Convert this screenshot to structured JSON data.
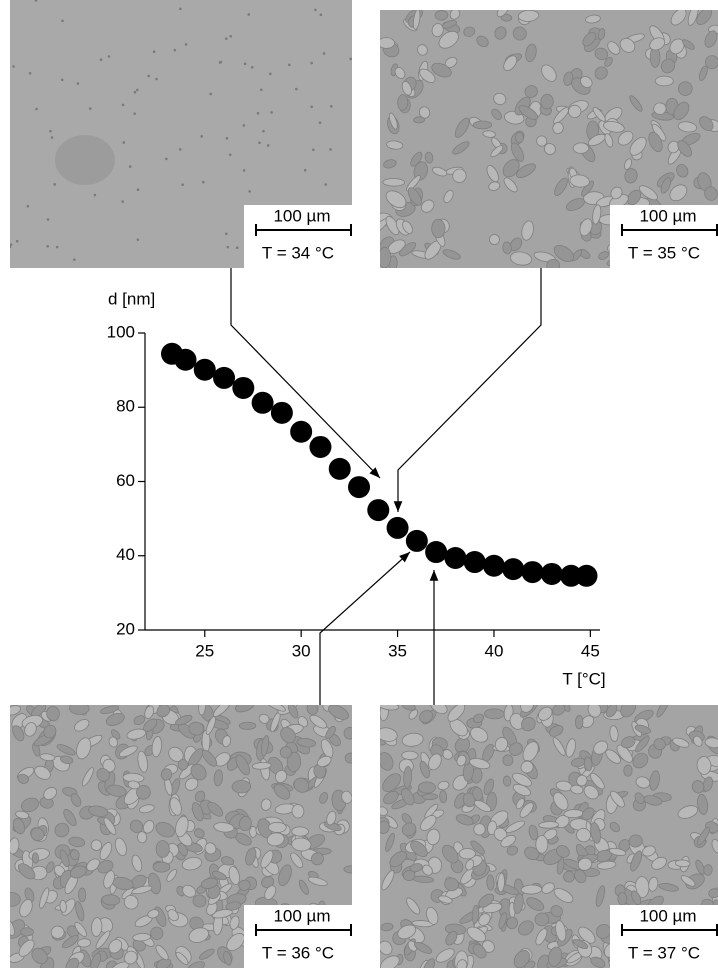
{
  "chart_data": {
    "type": "scatter",
    "y_label": "d [nm]",
    "x_label": "T [°C]",
    "series": [
      {
        "color": "#000000",
        "x": [
          23.3,
          24.0,
          25,
          26,
          27,
          28,
          29,
          30,
          31,
          32,
          33,
          34,
          35,
          36,
          37,
          38,
          39,
          40,
          41,
          42,
          43,
          44,
          44.8
        ],
        "values": [
          94.4,
          92.8,
          90.1,
          87.9,
          85.2,
          81.2,
          78.5,
          73.4,
          69.3,
          63.4,
          58.5,
          52.3,
          47.5,
          44.0,
          41.0,
          39.4,
          38.3,
          37.3,
          36.4,
          35.6,
          35.1,
          34.6,
          34.6
        ]
      }
    ],
    "xlim": [
      21.9,
      45.5
    ],
    "ylim": [
      20,
      100
    ],
    "xticks": [
      25,
      30,
      35,
      40,
      45
    ],
    "yticks": [
      20,
      40,
      60,
      80,
      100
    ]
  },
  "micrographs": [
    {
      "scale_bar": "100 µm",
      "temperature": "T = 34 °C"
    },
    {
      "scale_bar": "100 µm",
      "temperature": "T = 35 °C"
    },
    {
      "scale_bar": "100 µm",
      "temperature": "T = 36 °C"
    },
    {
      "scale_bar": "100 µm",
      "temperature": "T = 37 °C"
    }
  ]
}
